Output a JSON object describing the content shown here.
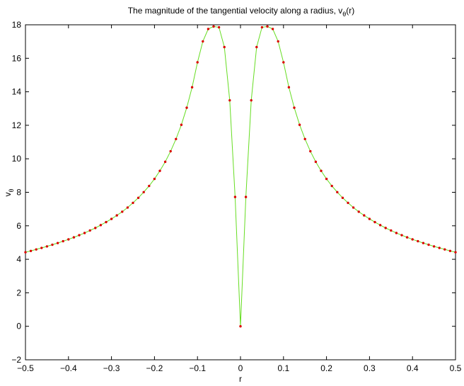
{
  "chart_data": {
    "type": "line",
    "title": "The magnitude of the tangential velocity along a radius, v",
    "title_subscript": "θ",
    "title_suffix": "(r)",
    "xlabel": "r",
    "ylabel": "v",
    "ylabel_subscript": "θ",
    "xlim": [
      -0.5,
      0.5
    ],
    "ylim": [
      -2,
      18
    ],
    "xticks": [
      -0.5,
      -0.4,
      -0.3,
      -0.2,
      -0.1,
      0,
      0.1,
      0.2,
      0.3,
      0.4,
      0.5
    ],
    "xtick_labels": [
      "−0.5",
      "−0.4",
      "−0.3",
      "−0.2",
      "−0.1",
      "0",
      "0.1",
      "0.2",
      "0.3",
      "0.4",
      "0.5"
    ],
    "yticks": [
      -2,
      0,
      2,
      4,
      6,
      8,
      10,
      12,
      14,
      16,
      18
    ],
    "ytick_labels": [
      "−2",
      "0",
      "2",
      "4",
      "6",
      "8",
      "10",
      "12",
      "14",
      "16",
      "18"
    ],
    "grid": false,
    "line_color": "#66dd22",
    "marker_color": "#dd0000",
    "x": [
      -0.5,
      -0.4875,
      -0.475,
      -0.4625,
      -0.45,
      -0.4375,
      -0.425,
      -0.4125,
      -0.4,
      -0.3875,
      -0.375,
      -0.3625,
      -0.35,
      -0.3375,
      -0.325,
      -0.3125,
      -0.3,
      -0.2875,
      -0.275,
      -0.2625,
      -0.25,
      -0.2375,
      -0.225,
      -0.2125,
      -0.2,
      -0.1875,
      -0.175,
      -0.1625,
      -0.15,
      -0.1375,
      -0.125,
      -0.1125,
      -0.1,
      -0.0875,
      -0.075,
      -0.0625,
      -0.05,
      -0.0375,
      -0.025,
      -0.0125,
      0,
      0.0125,
      0.025,
      0.0375,
      0.05,
      0.0625,
      0.075,
      0.0875,
      0.1,
      0.1125,
      0.125,
      0.1375,
      0.15,
      0.1625,
      0.175,
      0.1875,
      0.2,
      0.2125,
      0.225,
      0.2375,
      0.25,
      0.2625,
      0.275,
      0.2875,
      0.3,
      0.3125,
      0.325,
      0.3375,
      0.35,
      0.3625,
      0.375,
      0.3875,
      0.4,
      0.4125,
      0.425,
      0.4375,
      0.45,
      0.4625,
      0.475,
      0.4875,
      0.5
    ],
    "y": [
      4.42,
      4.5,
      4.59,
      4.68,
      4.77,
      4.87,
      4.97,
      5.08,
      5.19,
      5.31,
      5.44,
      5.57,
      5.72,
      5.87,
      6.04,
      6.22,
      6.41,
      6.62,
      6.84,
      7.09,
      7.37,
      7.67,
      8.01,
      8.38,
      8.8,
      9.28,
      9.82,
      10.45,
      11.18,
      12.03,
      13.05,
      14.27,
      15.76,
      17.01,
      17.75,
      17.9,
      17.85,
      16.67,
      13.49,
      7.72,
      0,
      7.72,
      13.49,
      16.67,
      17.85,
      17.9,
      17.75,
      17.01,
      15.76,
      14.27,
      13.05,
      12.03,
      11.18,
      10.45,
      9.82,
      9.28,
      8.8,
      8.38,
      8.01,
      7.67,
      7.37,
      7.09,
      6.84,
      6.62,
      6.41,
      6.22,
      6.04,
      5.87,
      5.72,
      5.57,
      5.44,
      5.31,
      5.19,
      5.08,
      4.97,
      4.87,
      4.77,
      4.68,
      4.59,
      4.5,
      4.42
    ]
  }
}
